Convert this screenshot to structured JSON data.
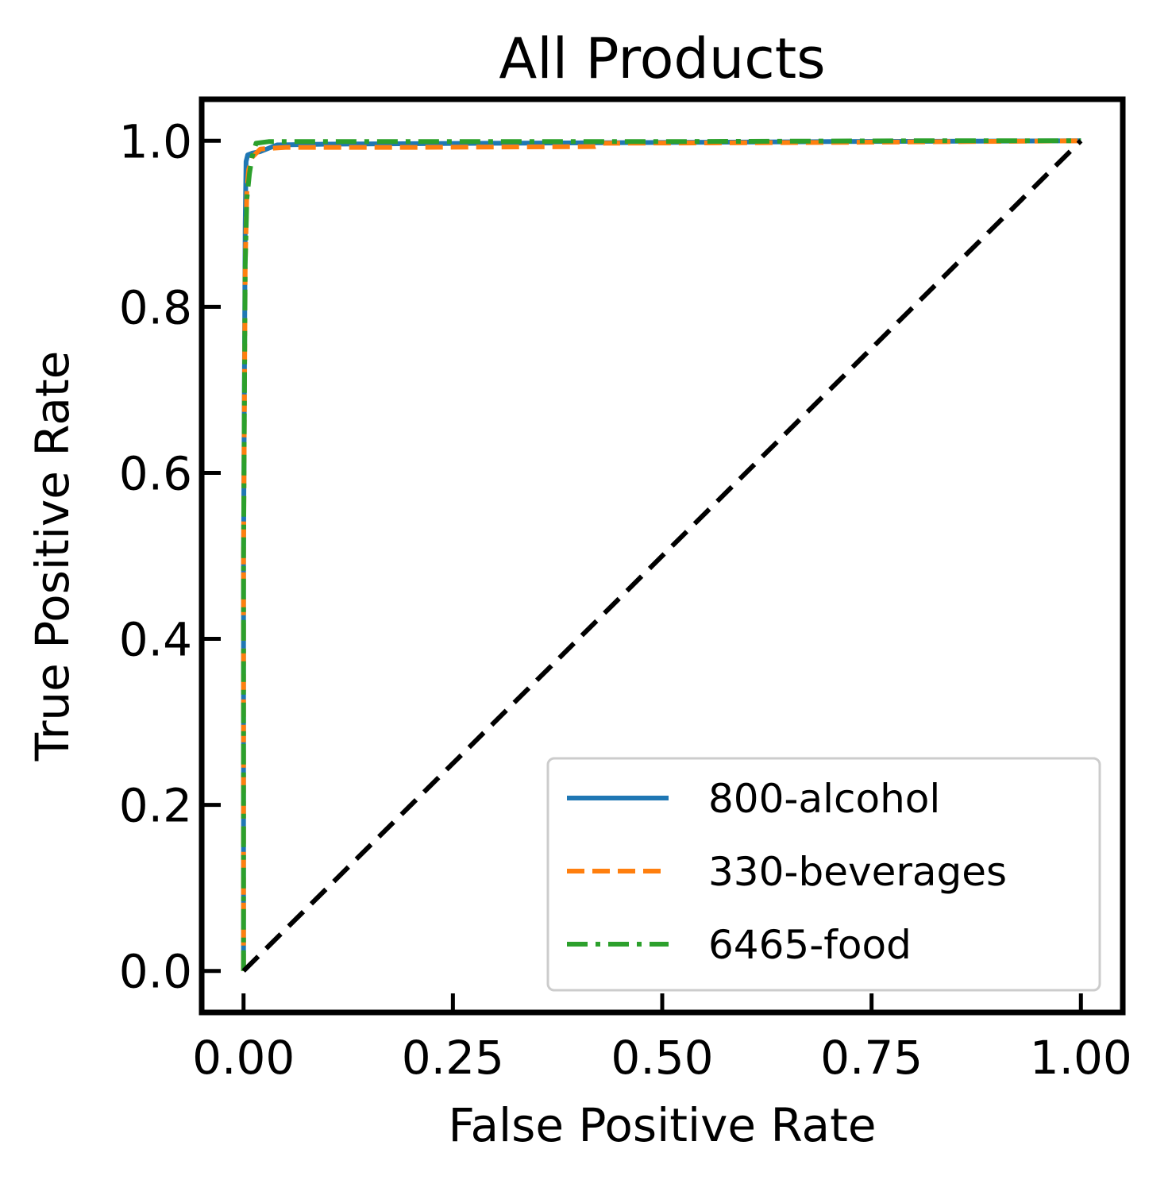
{
  "chart_data": {
    "type": "line",
    "title": "All Products",
    "xlabel": "False Positive Rate",
    "ylabel": "True Positive Rate",
    "xlim": [
      -0.05,
      1.05
    ],
    "ylim": [
      -0.05,
      1.05
    ],
    "xticks": [
      0.0,
      0.25,
      0.5,
      0.75,
      1.0
    ],
    "xtick_labels": [
      "0.00",
      "0.25",
      "0.50",
      "0.75",
      "1.00"
    ],
    "yticks": [
      0.0,
      0.2,
      0.4,
      0.6,
      0.8,
      1.0
    ],
    "ytick_labels": [
      "0.0",
      "0.2",
      "0.4",
      "0.6",
      "0.8",
      "1.0"
    ],
    "grid": false,
    "legend_position": "lower right",
    "series": [
      {
        "name": "800-alcohol",
        "color": "#1f77b4",
        "dash": "solid",
        "x": [
          0.0,
          0.0,
          0.002,
          0.003,
          0.005,
          0.01,
          0.02,
          0.04,
          0.1,
          0.3,
          0.5,
          0.7,
          1.0
        ],
        "y": [
          0.0,
          0.5,
          0.9,
          0.975,
          0.983,
          0.985,
          0.987,
          0.995,
          0.996,
          0.997,
          0.998,
          0.999,
          1.0
        ]
      },
      {
        "name": "330-beverages",
        "color": "#ff7f0e",
        "dash": "dashed",
        "x": [
          0.0,
          0.0,
          0.002,
          0.004,
          0.006,
          0.01,
          0.02,
          0.05,
          0.2,
          0.42,
          0.43,
          0.7,
          1.0
        ],
        "y": [
          0.0,
          0.5,
          0.85,
          0.94,
          0.965,
          0.98,
          0.99,
          0.992,
          0.992,
          0.993,
          0.997,
          0.998,
          1.0
        ]
      },
      {
        "name": "6465-food",
        "color": "#2ca02c",
        "dash": "dashdot",
        "x": [
          0.0,
          0.0,
          0.002,
          0.004,
          0.007,
          0.01,
          0.015,
          0.03,
          0.2,
          0.5,
          0.8,
          1.0
        ],
        "y": [
          0.0,
          0.5,
          0.85,
          0.93,
          0.96,
          0.98,
          0.997,
          0.999,
          0.999,
          0.999,
          1.0,
          1.0
        ]
      }
    ],
    "reference_line": {
      "color": "#000000",
      "dash": "dashed",
      "x": [
        0.0,
        1.0
      ],
      "y": [
        0.0,
        1.0
      ]
    }
  }
}
